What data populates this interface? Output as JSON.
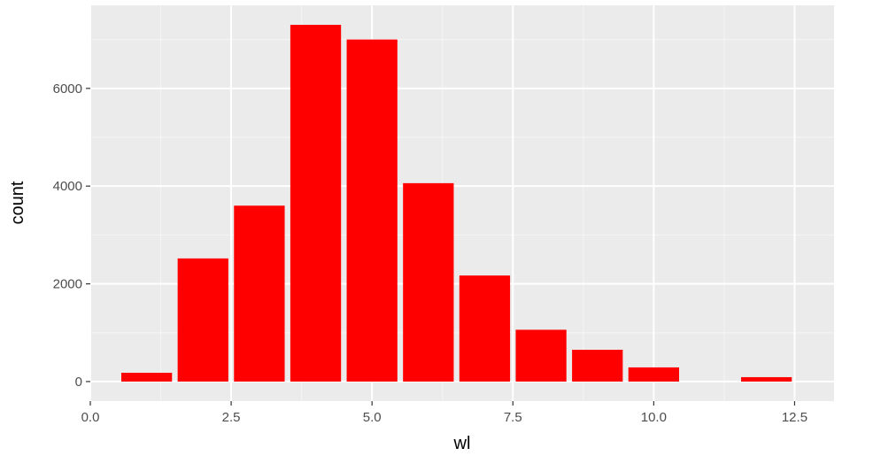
{
  "chart_data": {
    "type": "bar",
    "title": "",
    "xlabel": "wl",
    "ylabel": "count",
    "x": [
      1,
      2,
      3,
      4,
      5,
      6,
      7,
      8,
      9,
      10,
      11,
      12
    ],
    "values": [
      180,
      2520,
      3600,
      7300,
      7000,
      4060,
      2170,
      1060,
      650,
      290,
      0,
      90
    ],
    "bar_width": 0.9,
    "xlim": [
      0,
      13.2
    ],
    "ylim": [
      -400,
      7700
    ],
    "xticks": [
      0,
      2.5,
      5,
      7.5,
      10,
      12.5
    ],
    "xtick_labels": [
      "0.0",
      "2.5",
      "5.0",
      "7.5",
      "10.0",
      "12.5"
    ],
    "yticks": [
      0,
      2000,
      4000,
      6000
    ],
    "ytick_labels": [
      "0",
      "2000",
      "4000",
      "6000"
    ],
    "grid": true,
    "colors": {
      "bar": "#ff0000",
      "panel": "#ebebeb",
      "grid_major": "#ffffff",
      "grid_minor": "#f5f5f5",
      "tick_text": "#4d4d4d"
    }
  }
}
